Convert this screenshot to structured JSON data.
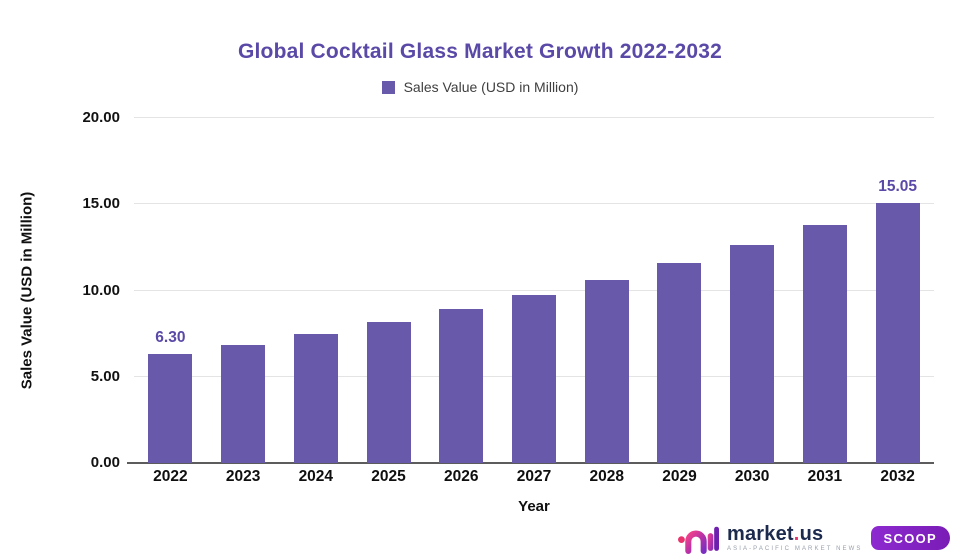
{
  "chart_data": {
    "type": "bar",
    "title": "Global Cocktail Glass Market Growth 2022-2032",
    "legend": "Sales Value (USD in Million)",
    "xlabel": "Year",
    "ylabel": "Sales Value (USD in Million)",
    "categories": [
      "2022",
      "2023",
      "2024",
      "2025",
      "2026",
      "2027",
      "2028",
      "2029",
      "2030",
      "2031",
      "2032"
    ],
    "values": [
      6.3,
      6.87,
      7.5,
      8.18,
      8.92,
      9.74,
      10.62,
      11.59,
      12.64,
      13.79,
      15.05
    ],
    "ylim": [
      0,
      20
    ],
    "yticks": [
      "0.00",
      "5.00",
      "10.00",
      "15.00",
      "20.00"
    ],
    "grid": true,
    "legend_position": "top",
    "bar_color": "#6959ab",
    "annotation_color": "#5b49a7",
    "annotations": [
      {
        "index": 0,
        "label": "6.30"
      },
      {
        "index": 10,
        "label": "15.05"
      }
    ]
  },
  "branding": {
    "wordmark_pre": "market",
    "wordmark_dot": ".",
    "wordmark_post": "us",
    "tagline": "ASIA-PACIFIC MARKET NEWS",
    "badge": "SCOOP",
    "accent_pink": "#e8336e",
    "accent_purple": "#7b2fc0"
  }
}
